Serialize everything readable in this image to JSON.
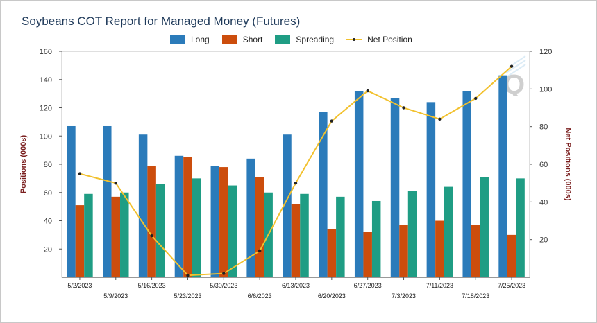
{
  "chart_data": {
    "type": "bar",
    "title": "Soybeans COT Report for Managed Money (Futures)",
    "ylabel": "Positions (000s)",
    "y2label": "Net Positions (000s)",
    "ylim": [
      0,
      160
    ],
    "y2lim": [
      0,
      120
    ],
    "yticks": [
      20,
      40,
      60,
      80,
      100,
      120,
      140,
      160
    ],
    "y2ticks": [
      20,
      40,
      60,
      80,
      100,
      120
    ],
    "categories": [
      "5/2/2023",
      "5/9/2023",
      "5/16/2023",
      "5/23/2023",
      "5/30/2023",
      "6/6/2023",
      "6/13/2023",
      "6/20/2023",
      "6/27/2023",
      "7/3/2023",
      "7/11/2023",
      "7/18/2023",
      "7/25/2023"
    ],
    "series": [
      {
        "name": "Long",
        "type": "bar",
        "color": "#2b7bba",
        "values": [
          107,
          107,
          101,
          86,
          79,
          84,
          101,
          117,
          132,
          127,
          124,
          132,
          143
        ]
      },
      {
        "name": "Short",
        "type": "bar",
        "color": "#cc4d0d",
        "values": [
          51,
          57,
          79,
          85,
          78,
          71,
          52,
          34,
          32,
          37,
          40,
          37,
          30
        ]
      },
      {
        "name": "Spreading",
        "type": "bar",
        "color": "#1f9d84",
        "values": [
          59,
          60,
          66,
          70,
          65,
          60,
          59,
          57,
          54,
          61,
          64,
          71,
          70
        ]
      },
      {
        "name": "Net Position",
        "type": "line",
        "axis": "right",
        "color": "#f2c12e",
        "values": [
          55,
          50,
          22,
          1,
          2,
          14,
          50,
          83,
          99,
          90,
          84,
          95,
          112
        ]
      }
    ],
    "legend_position": "top-center",
    "grid": false
  }
}
